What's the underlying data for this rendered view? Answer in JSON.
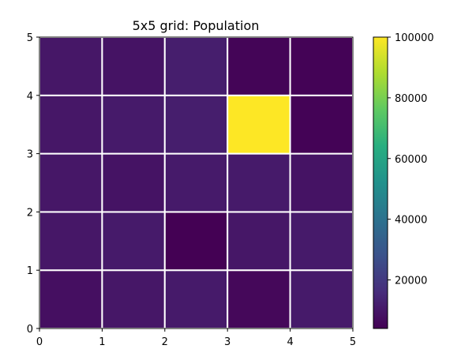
{
  "chart_data": {
    "type": "heatmap",
    "title": "5x5 grid: Population",
    "xlabel": "",
    "ylabel": "",
    "xlim": [
      0,
      5
    ],
    "ylim": [
      0,
      5
    ],
    "x_ticks": [
      "0",
      "1",
      "2",
      "3",
      "4",
      "5"
    ],
    "y_ticks": [
      "0",
      "1",
      "2",
      "3",
      "4",
      "5"
    ],
    "colormap": "viridis",
    "color_range": [
      4000,
      100000
    ],
    "colorbar_ticks": [
      "20000",
      "40000",
      "60000",
      "80000",
      "100000"
    ],
    "grid_line_color": "#ffffff",
    "rows_bottom_to_top": [
      [
        8000,
        10000,
        11000,
        6000,
        11000
      ],
      [
        10000,
        11000,
        4000,
        10000,
        11000
      ],
      [
        10000,
        9000,
        11000,
        11000,
        9000
      ],
      [
        10000,
        11000,
        12000,
        100000,
        4500
      ],
      [
        10000,
        9000,
        12000,
        5000,
        4500
      ]
    ]
  }
}
